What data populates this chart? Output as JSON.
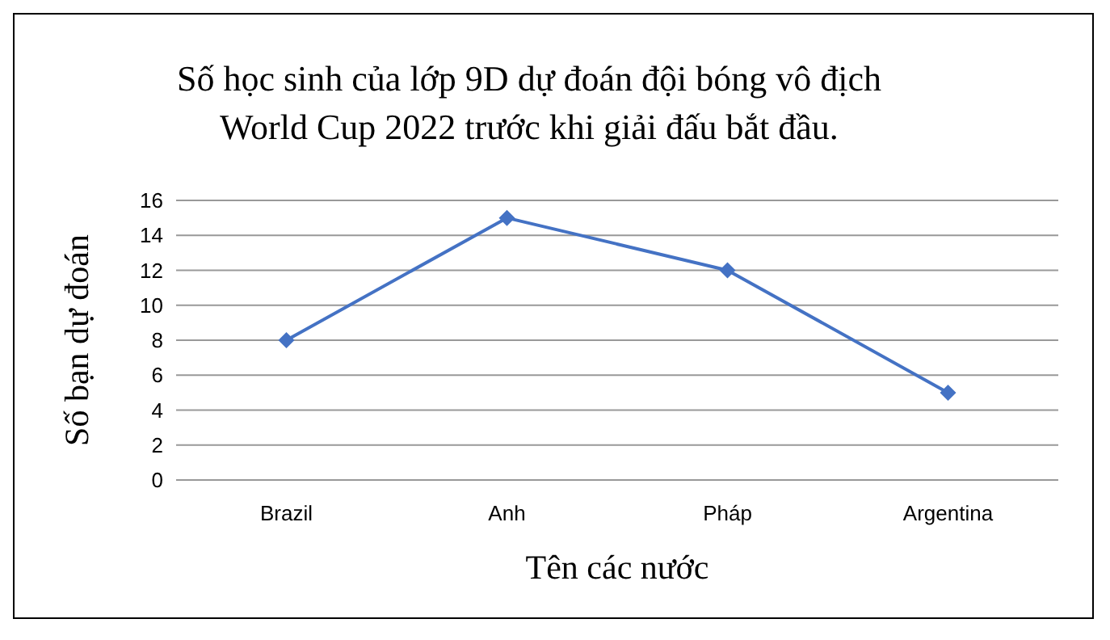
{
  "chart_data": {
    "type": "line",
    "title": "Số học sinh của lớp 9D dự đoán đội bóng vô địch\nWorld Cup 2022 trước khi giải đấu bắt đầu.",
    "xlabel": "Tên các nước",
    "ylabel": "Số bạn dự đoán",
    "categories": [
      "Brazil",
      "Anh",
      "Pháp",
      "Argentina"
    ],
    "values": [
      8,
      15,
      12,
      5
    ],
    "color": "#4472c4",
    "ylim": [
      0,
      16
    ],
    "yticks": [
      0,
      2,
      4,
      6,
      8,
      10,
      12,
      14,
      16
    ],
    "grid": "y",
    "marker": "diamond"
  }
}
